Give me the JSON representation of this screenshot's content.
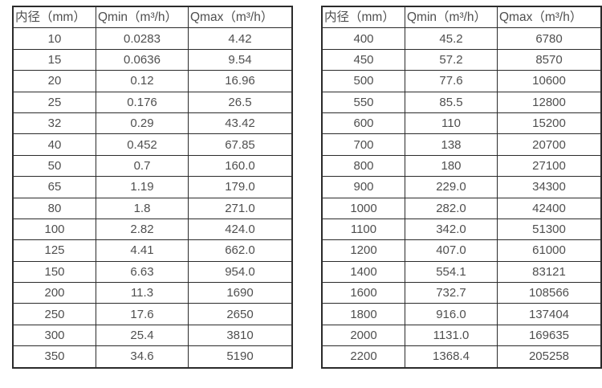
{
  "page": {
    "background_color": "#ffffff",
    "border_color": "#2b2b2b",
    "text_color": "#4f4f4f"
  },
  "table_left": {
    "headers": [
      "内径（mm）",
      "Qmin（m³/h）",
      "Qmax（m³/h）"
    ],
    "rows": [
      [
        "10",
        "0.0283",
        "4.42"
      ],
      [
        "15",
        "0.0636",
        "9.54"
      ],
      [
        "20",
        "0.12",
        "16.96"
      ],
      [
        "25",
        "0.176",
        "26.5"
      ],
      [
        "32",
        "0.29",
        "43.42"
      ],
      [
        "40",
        "0.452",
        "67.85"
      ],
      [
        "50",
        "0.7",
        "160.0"
      ],
      [
        "65",
        "1.19",
        "179.0"
      ],
      [
        "80",
        "1.8",
        "271.0"
      ],
      [
        "100",
        "2.82",
        "424.0"
      ],
      [
        "125",
        "4.41",
        "662.0"
      ],
      [
        "150",
        "6.63",
        "954.0"
      ],
      [
        "200",
        "11.3",
        "1690"
      ],
      [
        "250",
        "17.6",
        "2650"
      ],
      [
        "300",
        "25.4",
        "3810"
      ],
      [
        "350",
        "34.6",
        "5190"
      ]
    ]
  },
  "table_right": {
    "headers": [
      "内径（mm）",
      "Qmin（m³/h）",
      "Qmax（m³/h）"
    ],
    "rows": [
      [
        "400",
        "45.2",
        "6780"
      ],
      [
        "450",
        "57.2",
        "8570"
      ],
      [
        "500",
        "77.6",
        "10600"
      ],
      [
        "550",
        "85.5",
        "12800"
      ],
      [
        "600",
        "110",
        "15200"
      ],
      [
        "700",
        "138",
        "20700"
      ],
      [
        "800",
        "180",
        "27100"
      ],
      [
        "900",
        "229.0",
        "34300"
      ],
      [
        "1000",
        "282.0",
        "42400"
      ],
      [
        "1100",
        "342.0",
        "51300"
      ],
      [
        "1200",
        "407.0",
        "61000"
      ],
      [
        "1400",
        "554.1",
        "83121"
      ],
      [
        "1600",
        "732.7",
        "108566"
      ],
      [
        "1800",
        "916.0",
        "137404"
      ],
      [
        "2000",
        "1131.0",
        "169635"
      ],
      [
        "2200",
        "1368.4",
        "205258"
      ]
    ]
  }
}
